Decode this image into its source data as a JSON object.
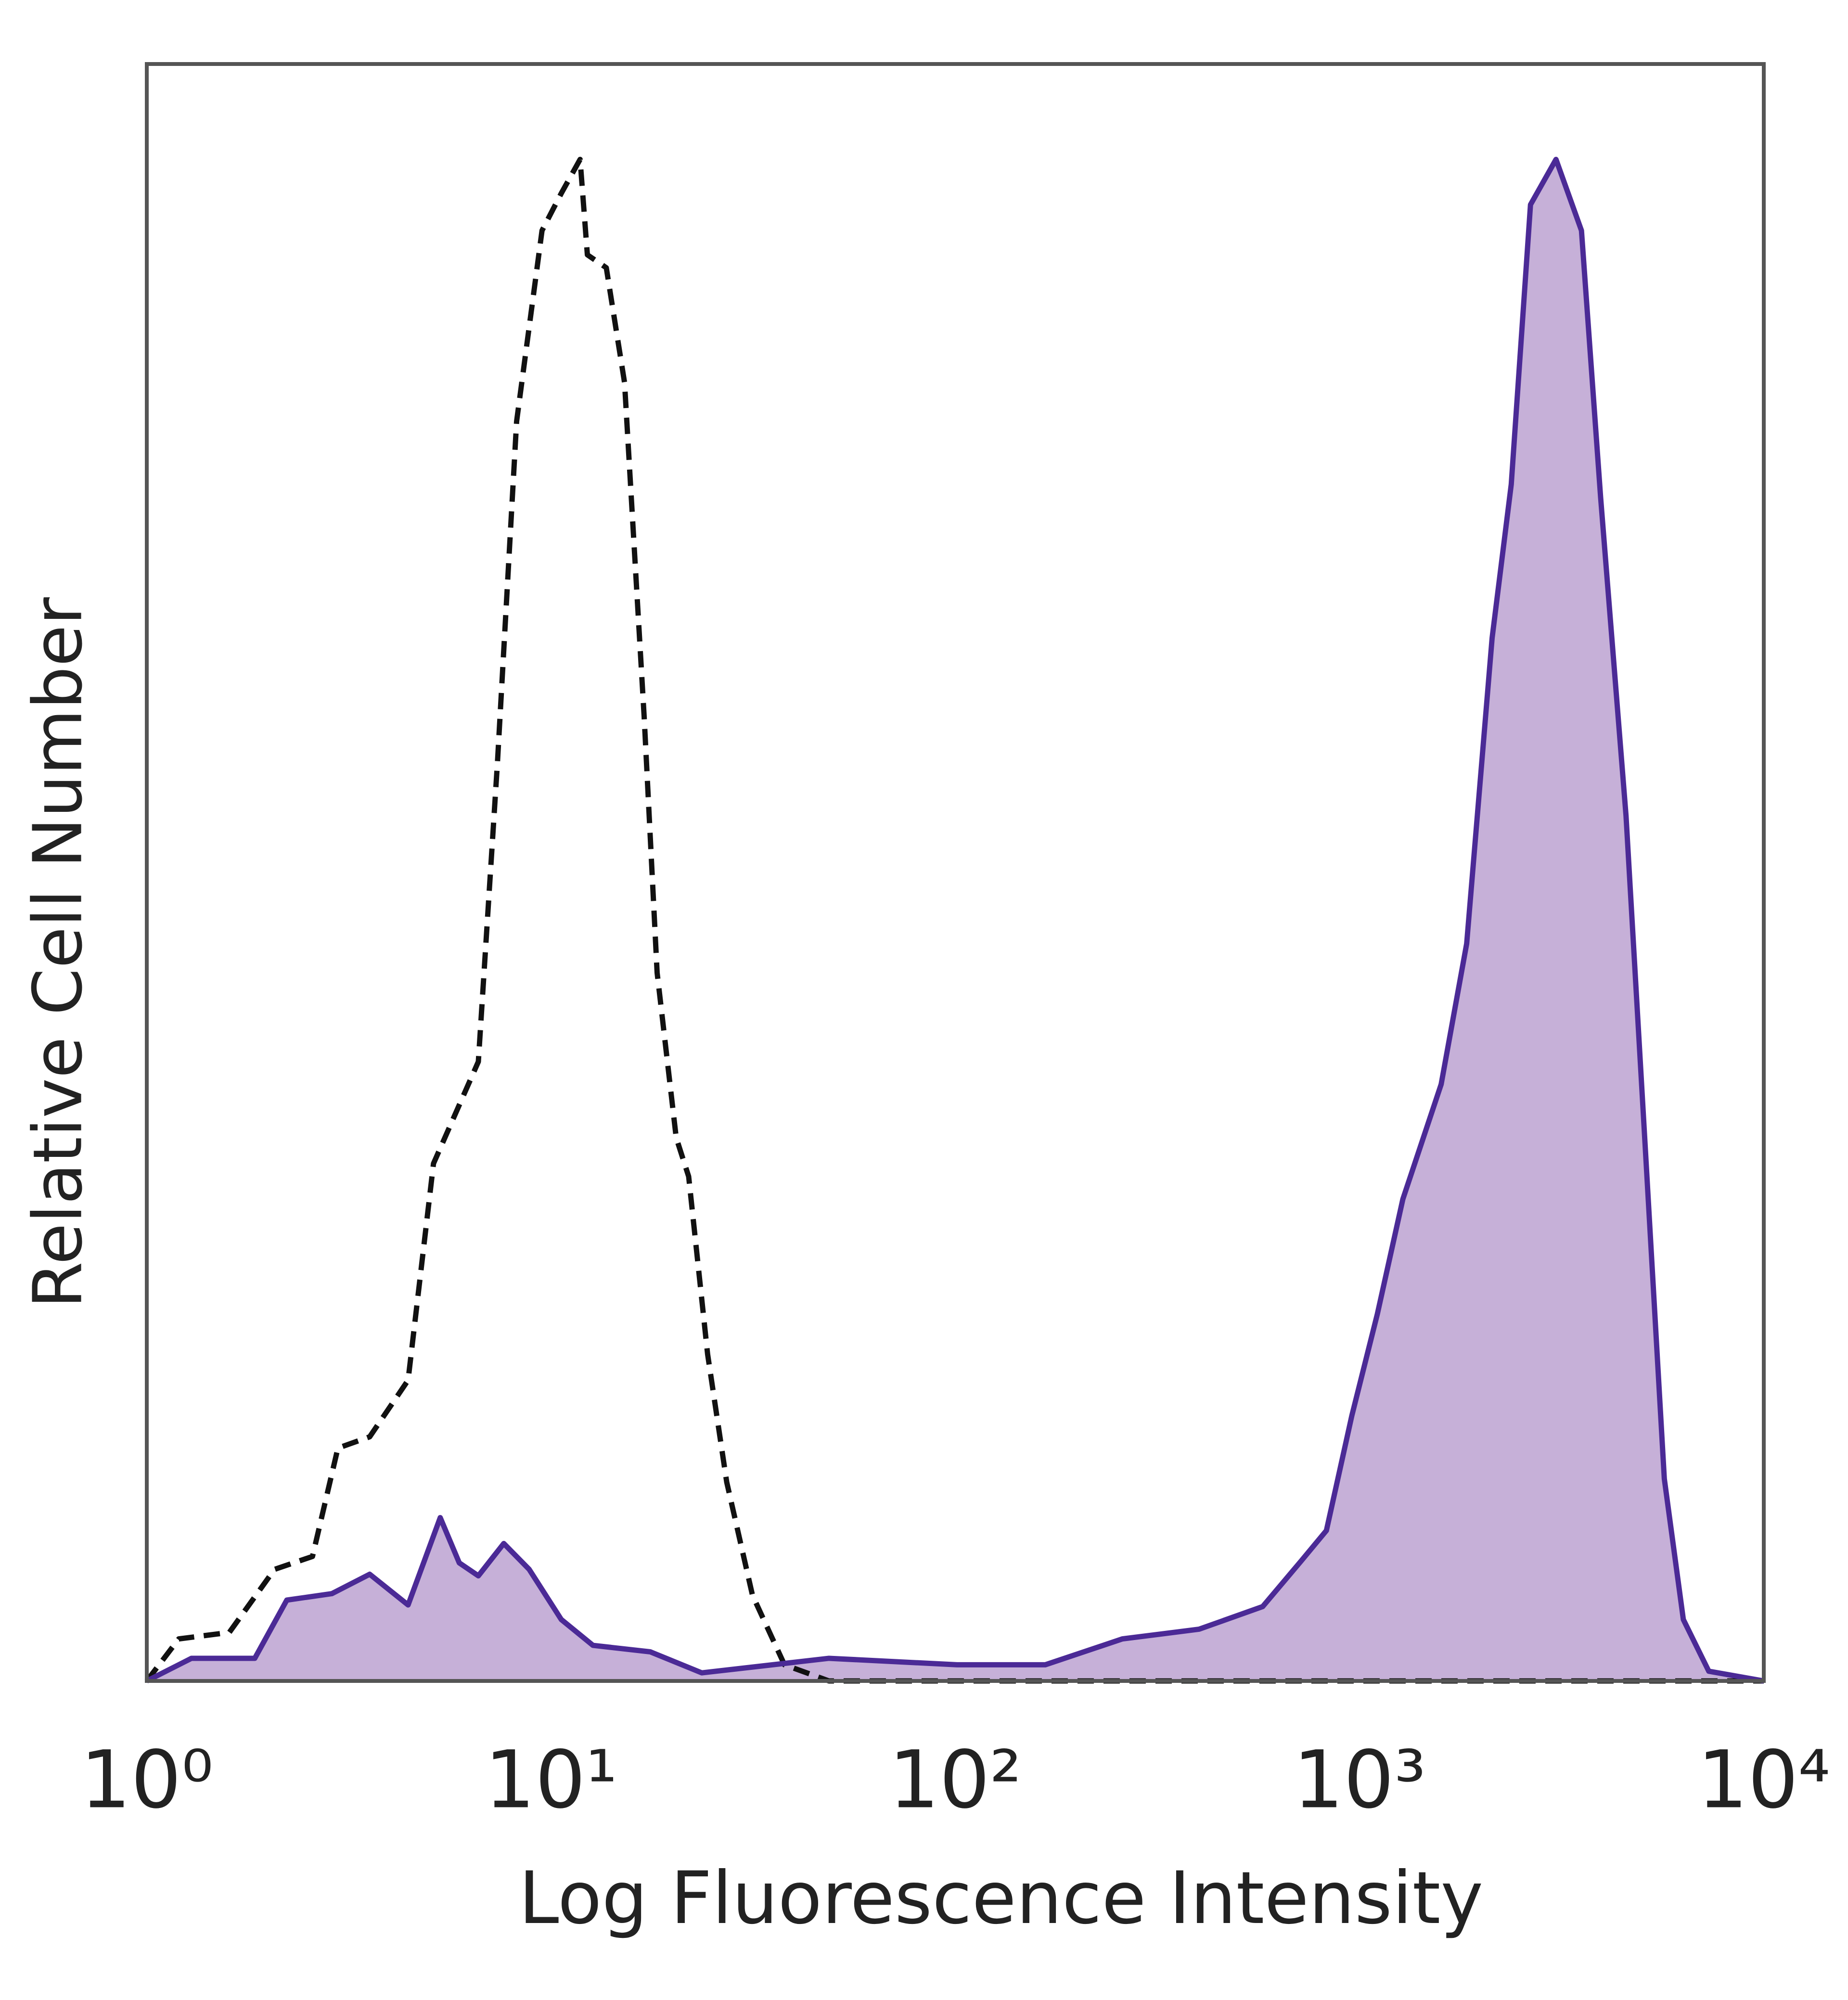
{
  "chart_data": {
    "type": "histogram-overlay",
    "x_label": "Log Fluorescence Intensity",
    "y_label": "Relative Cell Number",
    "xscale": "log",
    "xlim": [
      1,
      10000
    ],
    "ylim": [
      0,
      100
    ],
    "xticks": [
      {
        "value": 1,
        "label": "10⁰"
      },
      {
        "value": 10,
        "label": "10¹"
      },
      {
        "value": 100,
        "label": "10²"
      },
      {
        "value": 1000,
        "label": "10³"
      },
      {
        "value": 10000,
        "label": "10⁴"
      }
    ],
    "grid": false,
    "series": [
      {
        "color": "#111111",
        "style": "dashed",
        "filled": false,
        "x": [
          1,
          1.2,
          1.6,
          2.07,
          2.57,
          2.97,
          3.56,
          4.43,
          5.12,
          6.61,
          7.37,
          8.22,
          9.5,
          10.6,
          11.8,
          12.3,
          13.7,
          15.2,
          17.0,
          18.3,
          20.4,
          21.9,
          24.4,
          27.2,
          31.5,
          37.8,
          48.7,
          10000
        ],
        "values": [
          0,
          2.6,
          3.0,
          6.9,
          7.7,
          14.4,
          15.1,
          18.6,
          32.0,
          38.3,
          56.8,
          77.9,
          89.7,
          92.0,
          94.1,
          88.2,
          87.4,
          80.3,
          59.6,
          43.8,
          33.6,
          31.2,
          20.2,
          12.3,
          5.3,
          1.0,
          0,
          0
        ]
      },
      {
        "color": "#4b2a96",
        "fill": "#c6b0d8",
        "style": "solid",
        "filled": true,
        "x": [
          1,
          1.29,
          1.85,
          2.22,
          2.87,
          3.56,
          4.43,
          5.32,
          5.93,
          6.61,
          7.64,
          8.83,
          10.6,
          12.7,
          17.6,
          23.6,
          48.7,
          101,
          167,
          259,
          401,
          576,
          716,
          828,
          957,
          1107,
          1280,
          1592,
          1841,
          2128,
          2373,
          2648,
          3062,
          3540,
          3948,
          4563,
          5091,
          5675,
          6324,
          7311,
          10000
        ],
        "values": [
          0,
          1.4,
          1.4,
          5.0,
          5.4,
          6.6,
          4.7,
          10.1,
          7.3,
          6.5,
          8.5,
          6.9,
          3.8,
          2.2,
          1.8,
          0.5,
          1.4,
          1.0,
          1.0,
          2.6,
          3.2,
          4.6,
          7.4,
          9.3,
          16.4,
          22.7,
          29.8,
          36.9,
          45.6,
          64.5,
          74.0,
          91.3,
          94.1,
          89.7,
          73.2,
          53.5,
          33.0,
          12.5,
          3.8,
          0.6,
          0
        ]
      }
    ]
  }
}
